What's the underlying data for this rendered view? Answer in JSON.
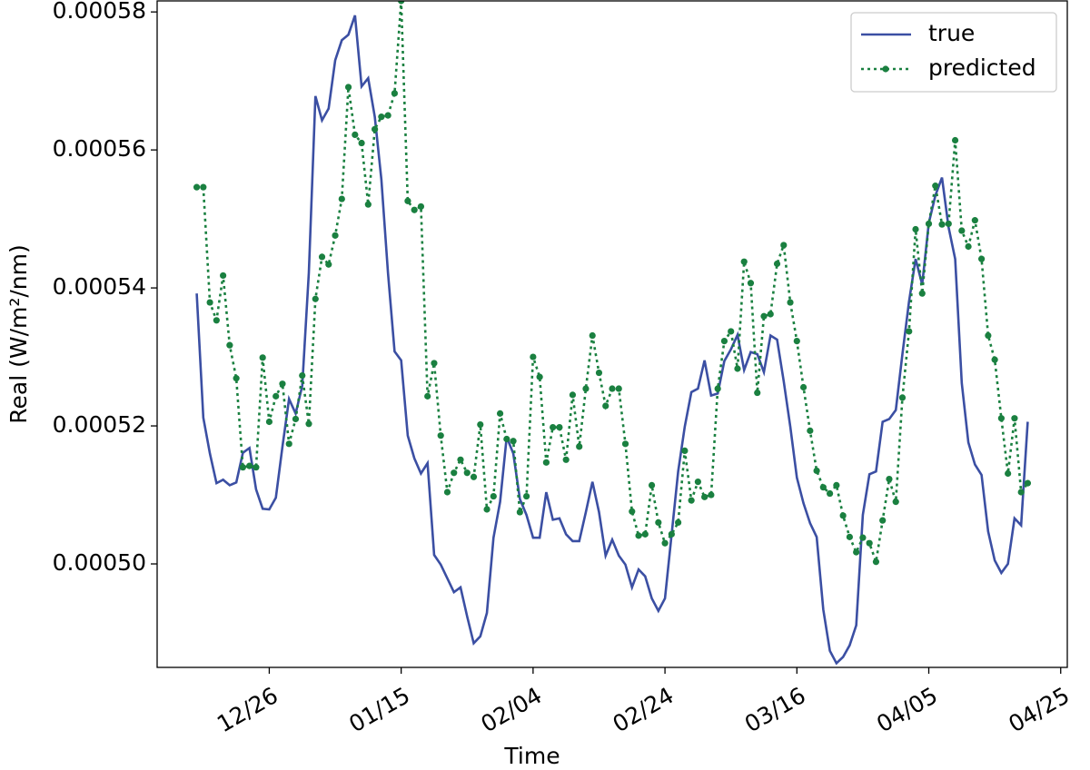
{
  "chart_data": {
    "type": "line",
    "x_label": "Time",
    "y_label": "Real (W/m²/nm)",
    "x": [
      "12/15",
      "12/16",
      "12/17",
      "12/18",
      "12/19",
      "12/20",
      "12/21",
      "12/22",
      "12/23",
      "12/24",
      "12/25",
      "12/26",
      "12/27",
      "12/28",
      "12/29",
      "12/30",
      "12/31",
      "01/01",
      "01/02",
      "01/03",
      "01/04",
      "01/05",
      "01/06",
      "01/07",
      "01/08",
      "01/09",
      "01/10",
      "01/11",
      "01/12",
      "01/13",
      "01/14",
      "01/15",
      "01/16",
      "01/17",
      "01/18",
      "01/19",
      "01/20",
      "01/21",
      "01/22",
      "01/23",
      "01/24",
      "01/25",
      "01/26",
      "01/27",
      "01/28",
      "01/29",
      "01/30",
      "01/31",
      "02/01",
      "02/02",
      "02/03",
      "02/04",
      "02/05",
      "02/06",
      "02/07",
      "02/08",
      "02/09",
      "02/10",
      "02/11",
      "02/12",
      "02/13",
      "02/14",
      "02/15",
      "02/16",
      "02/17",
      "02/18",
      "02/19",
      "02/20",
      "02/21",
      "02/22",
      "02/23",
      "02/24",
      "02/25",
      "02/26",
      "02/27",
      "02/28",
      "03/01",
      "03/02",
      "03/03",
      "03/04",
      "03/05",
      "03/06",
      "03/07",
      "03/08",
      "03/09",
      "03/10",
      "03/11",
      "03/12",
      "03/13",
      "03/14",
      "03/15",
      "03/16",
      "03/17",
      "03/18",
      "03/19",
      "03/20",
      "03/21",
      "03/22",
      "03/23",
      "03/24",
      "03/25",
      "03/26",
      "03/27",
      "03/28",
      "03/29",
      "03/30",
      "03/31",
      "04/01",
      "04/02",
      "04/03",
      "04/04",
      "04/05",
      "04/06",
      "04/07",
      "04/08",
      "04/09",
      "04/10",
      "04/11",
      "04/12",
      "04/13",
      "04/14",
      "04/15",
      "04/16",
      "04/17",
      "04/18",
      "04/19",
      "04/20"
    ],
    "series": [
      {
        "name": "true",
        "color": "#3b4fa3",
        "style": "solid",
        "values": [
          0.0005392,
          0.0005212,
          0.000516,
          0.0005117,
          0.0005122,
          0.0005114,
          0.0005118,
          0.0005161,
          0.0005168,
          0.0005108,
          0.000508,
          0.0005079,
          0.0005096,
          0.000517,
          0.0005239,
          0.0005218,
          0.0005258,
          0.0005422,
          0.0005678,
          0.0005643,
          0.000566,
          0.000573,
          0.0005759,
          0.0005767,
          0.0005795,
          0.0005692,
          0.0005704,
          0.0005648,
          0.0005557,
          0.0005422,
          0.0005308,
          0.0005295,
          0.0005186,
          0.0005153,
          0.0005131,
          0.0005146,
          0.0005013,
          0.0004999,
          0.0004979,
          0.0004959,
          0.0004966,
          0.0004924,
          0.0004885,
          0.0004895,
          0.0004929,
          0.0005038,
          0.000509,
          0.0005184,
          0.000516,
          0.0005094,
          0.0005071,
          0.0005038,
          0.0005038,
          0.0005104,
          0.0005064,
          0.0005066,
          0.0005043,
          0.0005033,
          0.0005033,
          0.0005075,
          0.0005119,
          0.0005075,
          0.0005012,
          0.0005035,
          0.0005012,
          0.0004999,
          0.0004966,
          0.0004992,
          0.0004982,
          0.000495,
          0.0004932,
          0.000495,
          0.0005042,
          0.0005134,
          0.0005199,
          0.0005249,
          0.0005254,
          0.0005295,
          0.0005244,
          0.0005247,
          0.0005294,
          0.0005311,
          0.0005332,
          0.0005281,
          0.0005307,
          0.0005304,
          0.0005278,
          0.0005331,
          0.0005325,
          0.0005265,
          0.0005199,
          0.0005125,
          0.0005088,
          0.0005059,
          0.0005039,
          0.0004934,
          0.0004874,
          0.0004856,
          0.0004865,
          0.0004882,
          0.0004911,
          0.0005071,
          0.000513,
          0.0005134,
          0.0005206,
          0.000521,
          0.0005223,
          0.0005304,
          0.000538,
          0.0005442,
          0.0005405,
          0.0005494,
          0.0005534,
          0.000556,
          0.0005488,
          0.0005442,
          0.0005262,
          0.0005176,
          0.0005144,
          0.0005129,
          0.0005047,
          0.0005005,
          0.0004987,
          0.0005,
          0.0005066,
          0.0005056,
          0.0005206
        ]
      },
      {
        "name": "predicted",
        "color": "#1a8040",
        "style": "dotted",
        "marker": "circle",
        "values": [
          0.0005546,
          0.0005546,
          0.0005379,
          0.0005353,
          0.0005418,
          0.0005317,
          0.0005269,
          0.000514,
          0.0005142,
          0.000514,
          0.0005299,
          0.0005206,
          0.0005243,
          0.0005261,
          0.0005174,
          0.000521,
          0.0005273,
          0.0005203,
          0.0005384,
          0.0005445,
          0.0005434,
          0.0005476,
          0.0005529,
          0.0005691,
          0.0005622,
          0.000561,
          0.0005521,
          0.000563,
          0.0005648,
          0.000565,
          0.0005682,
          0.0005816,
          0.0005526,
          0.0005513,
          0.0005518,
          0.0005243,
          0.0005291,
          0.0005186,
          0.0005104,
          0.0005132,
          0.0005151,
          0.0005132,
          0.0005126,
          0.0005202,
          0.0005079,
          0.0005098,
          0.0005218,
          0.0005181,
          0.0005178,
          0.0005075,
          0.0005098,
          0.00053,
          0.0005271,
          0.0005147,
          0.0005198,
          0.0005198,
          0.0005151,
          0.0005245,
          0.000517,
          0.0005254,
          0.0005331,
          0.0005277,
          0.0005229,
          0.0005254,
          0.0005254,
          0.0005174,
          0.0005076,
          0.0005041,
          0.0005043,
          0.0005114,
          0.000506,
          0.000503,
          0.0005043,
          0.000506,
          0.0005164,
          0.0005092,
          0.0005119,
          0.0005097,
          0.00051,
          0.0005254,
          0.0005323,
          0.0005337,
          0.0005283,
          0.0005438,
          0.0005407,
          0.0005248,
          0.0005359,
          0.0005362,
          0.0005435,
          0.0005462,
          0.0005379,
          0.0005323,
          0.0005256,
          0.0005193,
          0.0005135,
          0.0005111,
          0.0005102,
          0.0005114,
          0.000507,
          0.0005039,
          0.0005017,
          0.0005038,
          0.000503,
          0.0005003,
          0.0005063,
          0.0005123,
          0.000509,
          0.0005241,
          0.0005337,
          0.0005485,
          0.0005392,
          0.0005493,
          0.0005548,
          0.0005492,
          0.0005493,
          0.0005614,
          0.0005483,
          0.000546,
          0.0005498,
          0.0005442,
          0.0005331,
          0.0005296,
          0.0005211,
          0.0005131,
          0.0005211,
          0.0005104,
          0.0005117
        ]
      }
    ],
    "xlim": [
      "12/09",
      "04/26"
    ],
    "xticks": [
      "12/26",
      "01/15",
      "02/04",
      "02/24",
      "03/16",
      "04/05",
      "04/25"
    ],
    "ylim": [
      0.000485,
      0.0005816
    ],
    "yticks": [
      {
        "value": 0.0005,
        "label": "0.00050"
      },
      0.00052,
      0.00054,
      0.00056,
      0.00058
    ],
    "grid": false,
    "legend": "upper right"
  }
}
